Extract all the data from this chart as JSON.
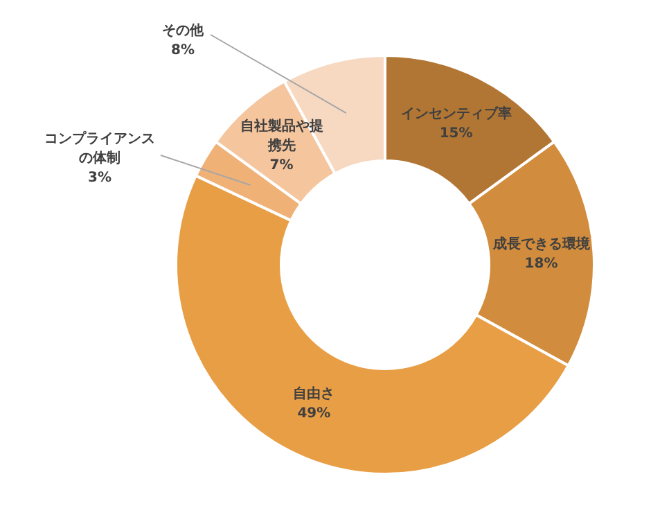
{
  "chart_data": {
    "type": "donut",
    "categories": [
      "インセンティブ率",
      "成長できる環境",
      "自由さ",
      "コンプライアンスの体制",
      "自社製品や提携先",
      "その他"
    ],
    "values": [
      15,
      18,
      49,
      3,
      7,
      8
    ],
    "colors": [
      "#b27634",
      "#d28c3d",
      "#e89e45",
      "#f0b177",
      "#f5c59d",
      "#f7d9c2"
    ],
    "value_labels": [
      "15%",
      "18%",
      "49%",
      "3%",
      "7%",
      "8%"
    ]
  }
}
